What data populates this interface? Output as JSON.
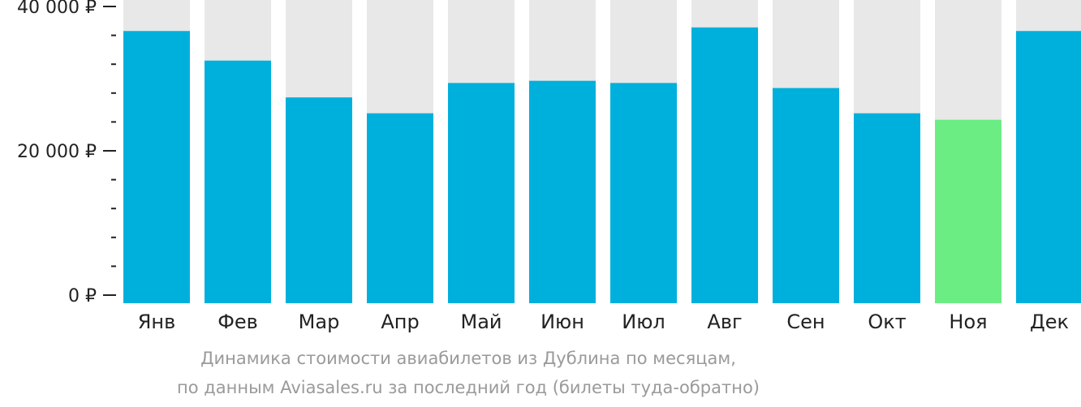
{
  "chart_data": {
    "type": "bar",
    "categories": [
      "Янв",
      "Фев",
      "Мар",
      "Апр",
      "Май",
      "Июн",
      "Июл",
      "Авг",
      "Сен",
      "Окт",
      "Ноя",
      "Дек"
    ],
    "values": [
      36600,
      32500,
      27400,
      25200,
      29400,
      29700,
      29400,
      37100,
      28700,
      25200,
      24300,
      36600
    ],
    "highlight_index": 10,
    "ylim": [
      0,
      42000
    ],
    "y_ticks": [
      {
        "value": 0,
        "label": "0 ₽"
      },
      {
        "value": 20000,
        "label": "20 000 ₽"
      },
      {
        "value": 40000,
        "label": "40 000 ₽"
      }
    ],
    "minor_tick_step": 4000,
    "grid": false,
    "legend": "none",
    "colors": {
      "bar": "#00b0dc",
      "highlight": "#6ced84",
      "background_column": "#e8e8e8",
      "axis_text": "#222222",
      "caption": "#9a9a9a"
    }
  },
  "caption": {
    "line1": "Динамика стоимости авиабилетов из Дублина по месяцам,",
    "line2": "по данным Aviasales.ru за последний год (билеты туда-обратно)"
  }
}
